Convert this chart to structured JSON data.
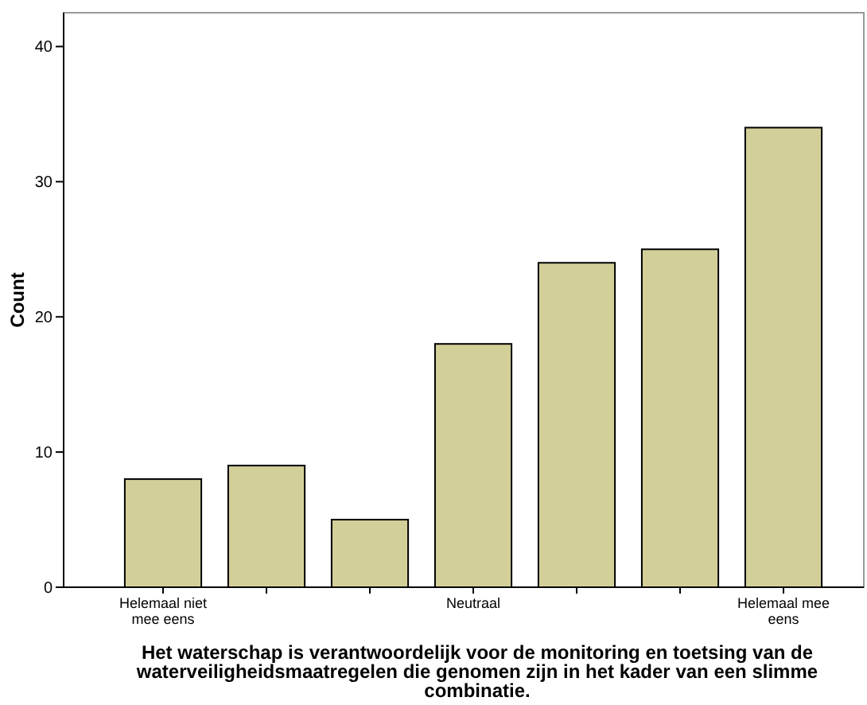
{
  "chart_data": {
    "type": "bar",
    "xlabel": "Het waterschap is verantwoordelijk voor de monitoring en toetsing van de waterveiligheidsmaatregelen die genomen zijn in het kader van een slimme combinatie.",
    "ylabel": "Count",
    "categories": [
      "Helemaal niet mee eens",
      null,
      null,
      "Neutraal",
      null,
      null,
      "Helemaal mee eens"
    ],
    "values": [
      8,
      9,
      5,
      18,
      24,
      25,
      34
    ],
    "color": "#d3cf99",
    "ylim": [
      0,
      42.5
    ],
    "yticks": [
      0,
      10,
      20,
      30,
      40
    ]
  }
}
